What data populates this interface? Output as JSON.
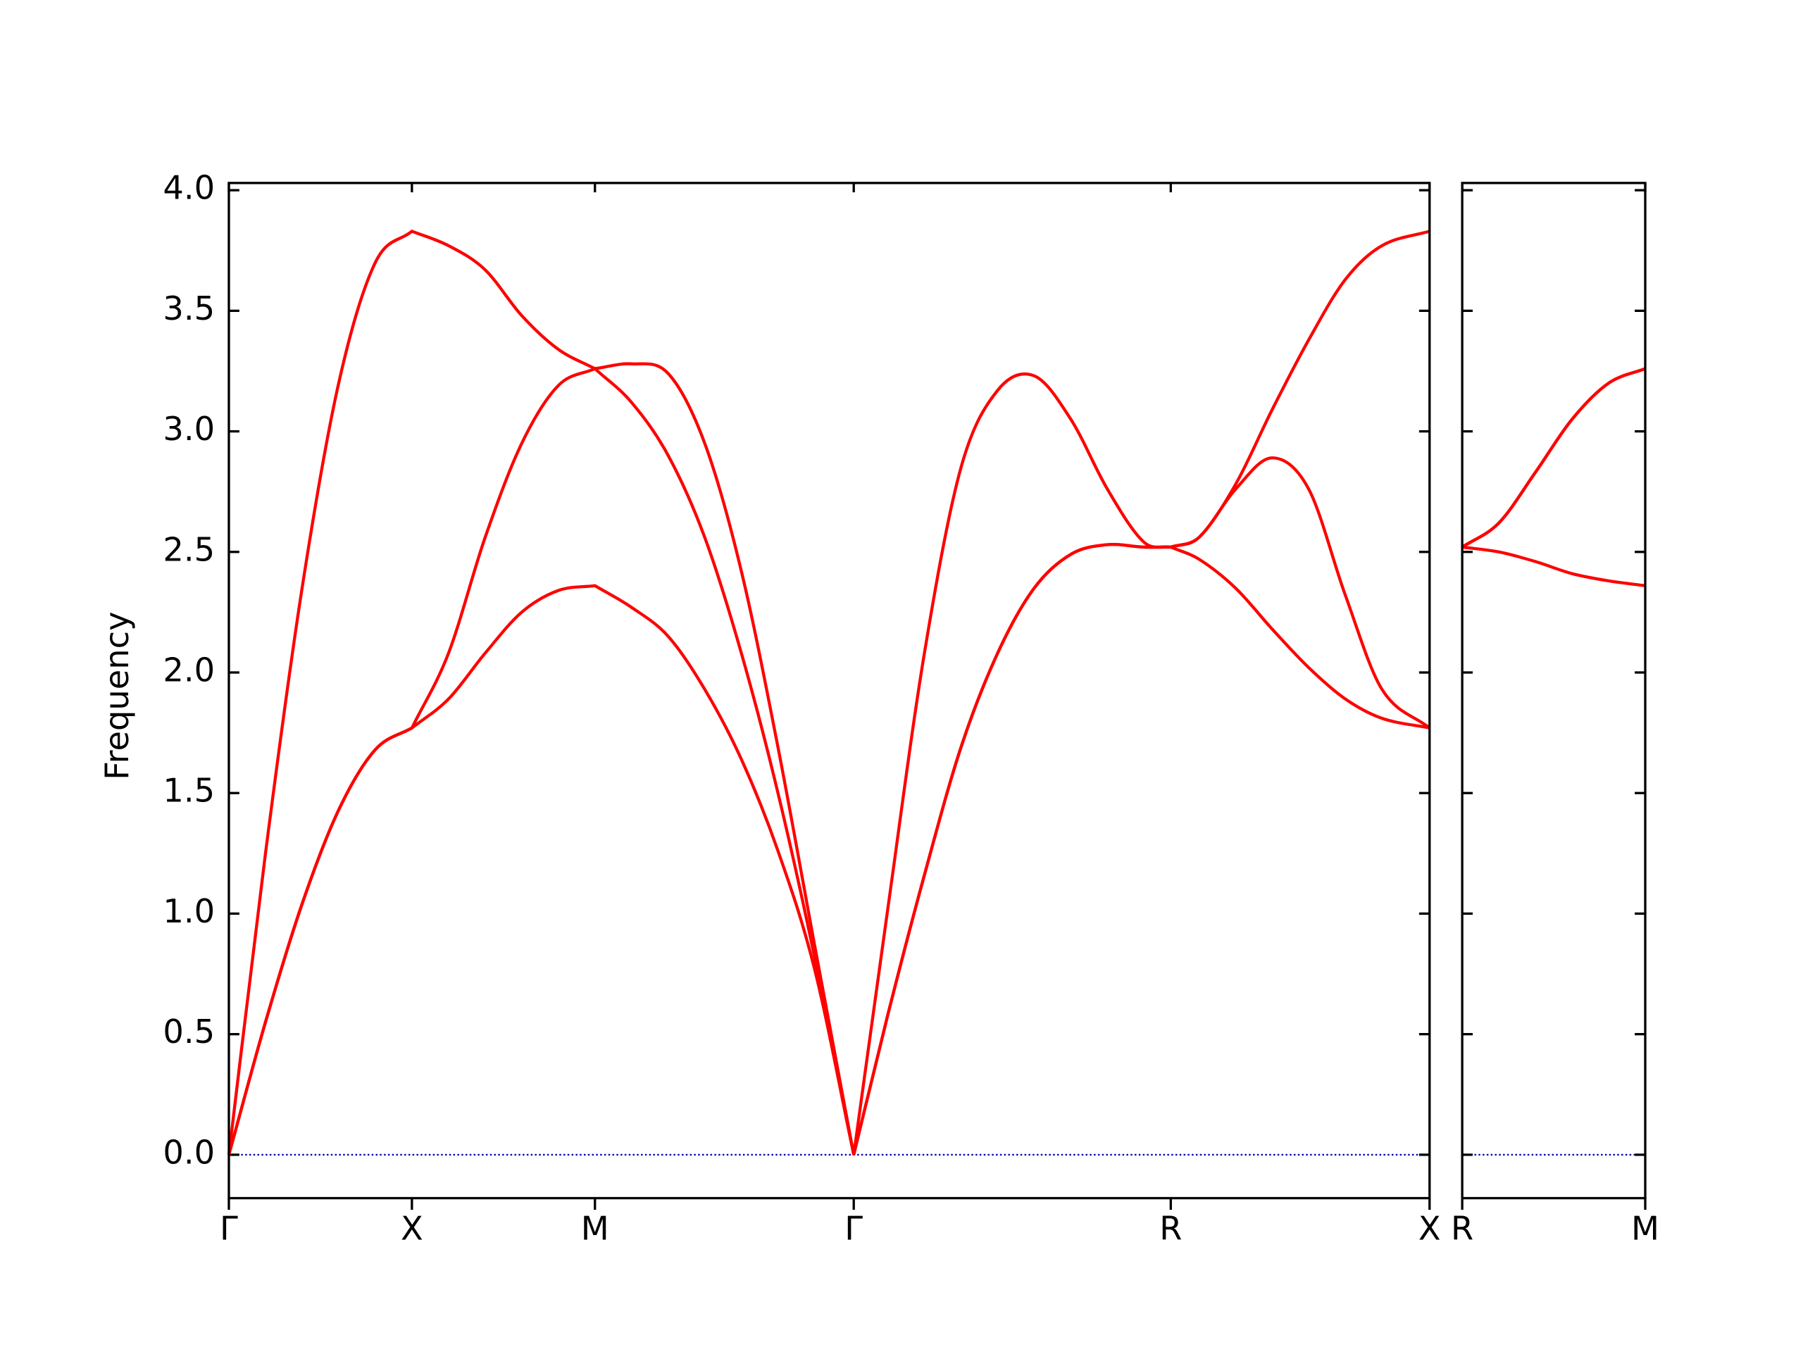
{
  "chart_data": [
    {
      "type": "line",
      "ylabel": "Frequency",
      "x": [
        0,
        0.1,
        0.2,
        0.3,
        0.4,
        0.5,
        0.6,
        0.7,
        0.8,
        0.9,
        1.0,
        1.1,
        1.2,
        1.3,
        1.4,
        1.5,
        1.6,
        1.707,
        1.8,
        1.9,
        2.0,
        2.1,
        2.2,
        2.3,
        2.4,
        2.5,
        2.573,
        2.65,
        2.75,
        2.85,
        2.95,
        3.05,
        3.15,
        3.28
      ],
      "series": [
        {
          "color": "#ff0000",
          "values": [
            0,
            0.55,
            1.04,
            1.43,
            1.68,
            1.77,
            1.89,
            2.08,
            2.25,
            2.34,
            2.36,
            2.27,
            2.15,
            1.93,
            1.64,
            1.26,
            0.77,
            0,
            0.58,
            1.16,
            1.69,
            2.08,
            2.35,
            2.49,
            2.53,
            2.52,
            2.52,
            2.47,
            2.35,
            2.18,
            2.02,
            1.89,
            1.81,
            1.77
          ]
        },
        {
          "color": "#ff0000",
          "values": [
            0,
            0.55,
            1.04,
            1.43,
            1.68,
            1.77,
            2.08,
            2.56,
            2.95,
            3.19,
            3.26,
            3.12,
            2.9,
            2.56,
            2.08,
            1.5,
            0.82,
            0,
            0.58,
            1.16,
            1.69,
            2.08,
            2.35,
            2.49,
            2.53,
            2.52,
            2.52,
            2.56,
            2.76,
            2.89,
            2.76,
            2.32,
            1.93,
            1.77
          ]
        },
        {
          "color": "#ff0000",
          "values": [
            0,
            1.25,
            2.35,
            3.2,
            3.7,
            3.83,
            3.77,
            3.67,
            3.48,
            3.34,
            3.26,
            3.28,
            3.24,
            2.95,
            2.42,
            1.69,
            0.87,
            0,
            1.02,
            2.08,
            2.85,
            3.17,
            3.23,
            3.05,
            2.76,
            2.54,
            2.52,
            2.56,
            2.78,
            3.09,
            3.38,
            3.63,
            3.77,
            3.83
          ]
        }
      ],
      "xlim": [
        0,
        3.28
      ],
      "xticks": [
        {
          "value": 0,
          "label": "Γ"
        },
        {
          "value": 0.5,
          "label": "X"
        },
        {
          "value": 1.0,
          "label": "M"
        },
        {
          "value": 1.707,
          "label": "Γ"
        },
        {
          "value": 2.573,
          "label": "R"
        },
        {
          "value": 3.28,
          "label": "X"
        }
      ],
      "ylim": [
        -0.18,
        4.03
      ],
      "yticks": [
        {
          "value": 0,
          "label": "0.0"
        },
        0.5,
        {
          "value": 1,
          "label": "1.0"
        },
        1.5,
        {
          "value": 2,
          "label": "2.0"
        },
        2.5,
        {
          "value": 3,
          "label": "3.0"
        },
        3.5,
        {
          "value": 4,
          "label": "4.0"
        }
      ],
      "ytick_labels": true,
      "hline": 0,
      "hline_color": "#0000aa"
    },
    {
      "type": "line",
      "x": [
        0,
        0.1,
        0.2,
        0.3,
        0.4,
        0.5
      ],
      "series": [
        {
          "color": "#ff0000",
          "values": [
            2.52,
            2.5,
            2.46,
            2.41,
            2.38,
            2.36
          ]
        },
        {
          "color": "#ff0000",
          "values": [
            2.52,
            2.62,
            2.83,
            3.05,
            3.2,
            3.26
          ]
        },
        {
          "color": "#ff0000",
          "values": [
            2.52,
            2.62,
            2.83,
            3.05,
            3.2,
            3.26
          ]
        }
      ],
      "xlim": [
        0,
        0.5
      ],
      "xticks": [
        {
          "value": 0,
          "label": "R"
        },
        {
          "value": 0.5,
          "label": "M"
        }
      ],
      "ylim": [
        -0.18,
        4.03
      ],
      "yticks": [
        0,
        0.5,
        1,
        1.5,
        2,
        2.5,
        3,
        3.5,
        4
      ],
      "ytick_labels": false,
      "hline": 0,
      "hline_color": "#0000aa"
    }
  ]
}
